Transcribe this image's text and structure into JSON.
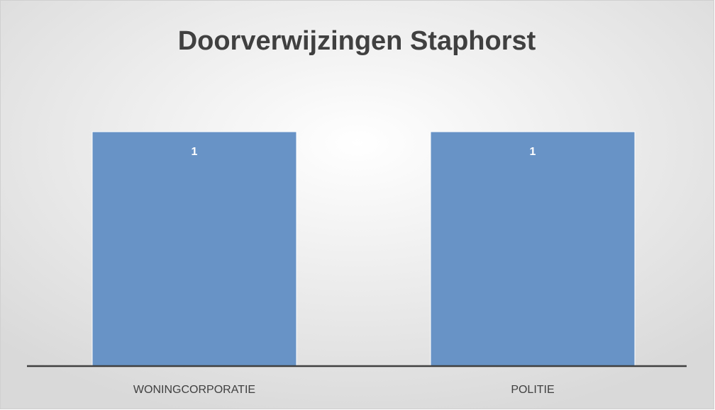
{
  "chart_data": {
    "type": "bar",
    "title": "Doorverwijzingen Staphorst",
    "categories": [
      "WONINGCORPORATIE",
      "POLITIE"
    ],
    "values": [
      1,
      1
    ],
    "color": "#6893c6",
    "ylim": [
      0,
      1
    ]
  }
}
